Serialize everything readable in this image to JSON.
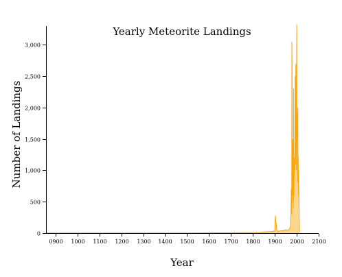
{
  "chart_data": {
    "type": "area",
    "title": "Yearly Meteorite Landings",
    "xlabel": "Year",
    "ylabel": "Number of Landings",
    "xlim": [
      860,
      2100
    ],
    "ylim": [
      0,
      3300
    ],
    "x_ticks": [
      900,
      1000,
      1100,
      1200,
      1300,
      1400,
      1500,
      1600,
      1700,
      1800,
      1900,
      2000,
      2100
    ],
    "x_tick_labels": [
      "0900",
      "1000",
      "1100",
      "1200",
      "1300",
      "1400",
      "1500",
      "1600",
      "1700",
      "1800",
      "1900",
      "2000",
      "2100"
    ],
    "y_ticks": [
      0,
      500,
      1000,
      1500,
      2000,
      2500,
      3000
    ],
    "y_tick_labels": [
      "0",
      "500",
      "1,000",
      "1,500",
      "2,000",
      "2,500",
      "3,000"
    ],
    "grid": false,
    "color": "#FFA500",
    "series": [
      {
        "x": [
          860,
          1490,
          1800,
          1830,
          1860,
          1880,
          1895,
          1900,
          1902,
          1910,
          1925,
          1935,
          1945,
          1950,
          1955,
          1960,
          1965,
          1968,
          1970,
          1972,
          1974,
          1975,
          1976,
          1977,
          1978,
          1979,
          1980,
          1981,
          1982,
          1983,
          1984,
          1985,
          1986,
          1987,
          1988,
          1989,
          1990,
          1991,
          1992,
          1993,
          1994,
          1995,
          1996,
          1997,
          1998,
          1999,
          2000,
          2001,
          2002,
          2003,
          2004,
          2005,
          2006,
          2007,
          2008,
          2009,
          2010,
          2011,
          2012,
          2013
        ],
        "values": [
          1,
          1,
          10,
          12,
          20,
          25,
          30,
          40,
          280,
          30,
          35,
          40,
          45,
          55,
          40,
          50,
          60,
          70,
          80,
          120,
          350,
          700,
          400,
          300,
          3050,
          2700,
          600,
          800,
          1500,
          500,
          1100,
          400,
          2300,
          600,
          1000,
          900,
          1200,
          1000,
          1400,
          2500,
          1100,
          1600,
          2700,
          1900,
          1000,
          2300,
          3320,
          1500,
          1900,
          1400,
          800,
          2000,
          900,
          1200,
          600,
          1000,
          600,
          300,
          150,
          20
        ]
      }
    ]
  }
}
